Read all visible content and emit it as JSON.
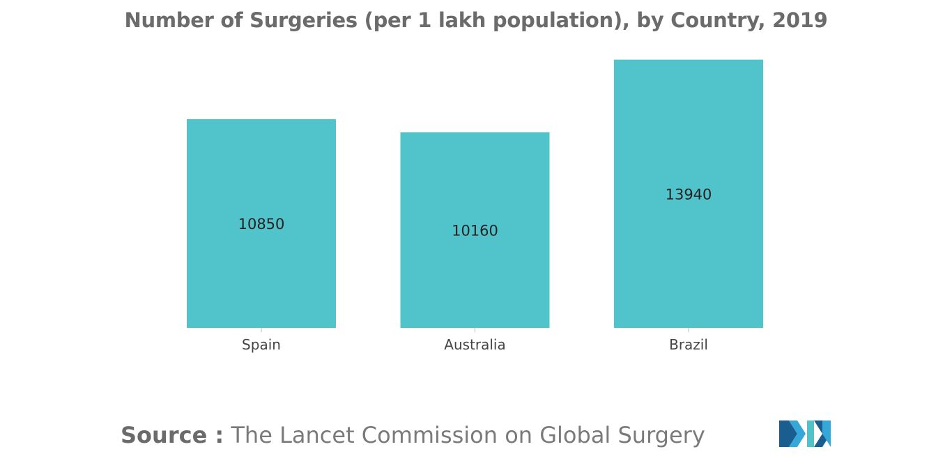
{
  "chart_data": {
    "type": "bar",
    "title": "Number of Surgeries (per 1 lakh population), by Country, 2019",
    "categories": [
      "Spain",
      "Australia",
      "Brazil"
    ],
    "values": [
      10850,
      10160,
      13940
    ],
    "ylim": [
      0,
      14000
    ],
    "grid": false,
    "legend": "none",
    "bar_color": "#51c4cb"
  },
  "source": {
    "label": "Source :",
    "text": "The Lancet Commission on Global Surgery"
  },
  "logo": {
    "icon": "mordor-intelligence-logo",
    "colors": [
      "#1a5d8f",
      "#35a8d8",
      "#4fc3c7"
    ]
  }
}
